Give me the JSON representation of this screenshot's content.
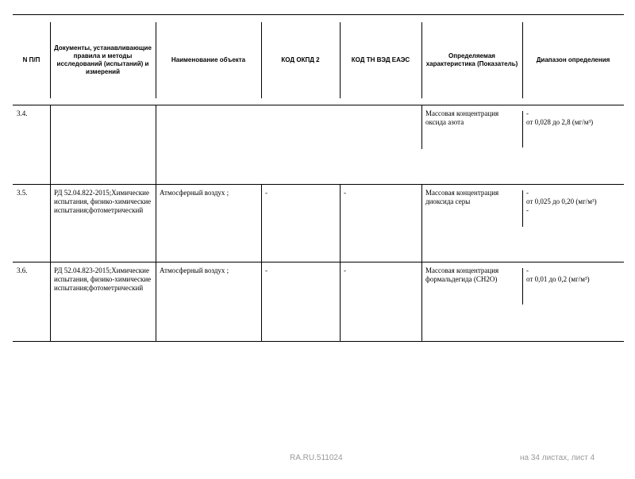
{
  "table": {
    "headers": [
      "N П/П",
      "Документы, устанавливающие правила и методы исследований (испытаний) и измерений",
      "Наименование объекта",
      "КОД ОКПД 2",
      "КОД ТН ВЭД ЕАЭС",
      "Определяемая характеристика (Показатель)",
      "Диапазон определения"
    ],
    "rows": [
      {
        "number": "3.4.",
        "characteristic": "Массовая концентрация оксида азота",
        "range": [
          "-",
          "от 0,028 до 2,8 (мг/м³)"
        ]
      },
      {
        "number": "3.5.",
        "document": "РД 52.04.822-2015;Химические испытания, физико-химические испытания;фотометрический",
        "object": "Атмосферный воздух ;",
        "okpd": "-",
        "tnved": "-",
        "characteristic": "Массовая концентрация диоксида серы",
        "range": [
          "-",
          "от 0,025 до 0,20 (мг/м³)",
          "-"
        ]
      },
      {
        "number": "3.6.",
        "document": "РД 52.04.823-2015;Химические испытания, физико-химические испытания;фотометрический",
        "object": "Атмосферный воздух ;",
        "okpd": "-",
        "tnved": "-",
        "characteristic": "Массовая концентрация формальдегида (CH2O)",
        "range": [
          "-",
          "от 0,01 до 0,2 (мг/м³)"
        ]
      }
    ]
  },
  "footer": {
    "code": "RA.RU.511024",
    "pages": "на 34 листах, лист 4"
  }
}
